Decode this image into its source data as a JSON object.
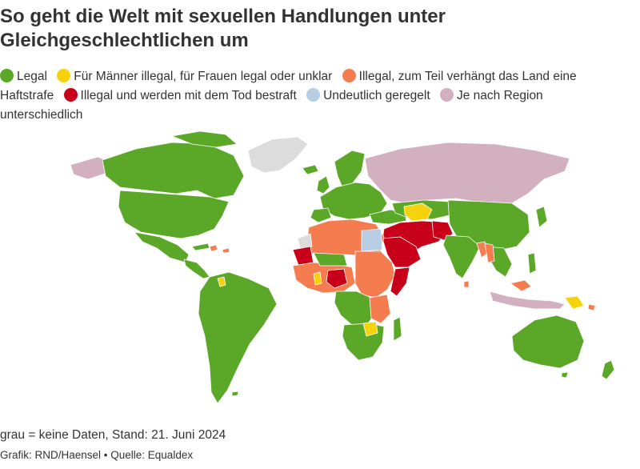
{
  "title": "So geht die Welt mit sexuellen Handlungen unter Gleichgeschlechtlichen um",
  "legend": [
    {
      "key": "legal",
      "label": "Legal",
      "color": "#5ba829"
    },
    {
      "key": "male_illegal",
      "label": "Für Männer illegal, für Frauen legal oder unklar",
      "color": "#f5d20c"
    },
    {
      "key": "illegal_prison",
      "label": "Illegal, zum Teil verhängt das Land eine Haftstrafe",
      "color": "#f57c4f"
    },
    {
      "key": "death",
      "label": "Illegal und werden mit dem Tod bestraft",
      "color": "#c8001a"
    },
    {
      "key": "unclear",
      "label": "Undeutlich geregelt",
      "color": "#b6cde3"
    },
    {
      "key": "region",
      "label": "Je nach Region unterschiedlich",
      "color": "#d2b0bf"
    }
  ],
  "nodata_color": "#dcdcdc",
  "note": "grau = keine Daten, Stand: 21. Juni 2024",
  "credit": "Grafik: RND/Haensel • Quelle: Equaldex"
}
